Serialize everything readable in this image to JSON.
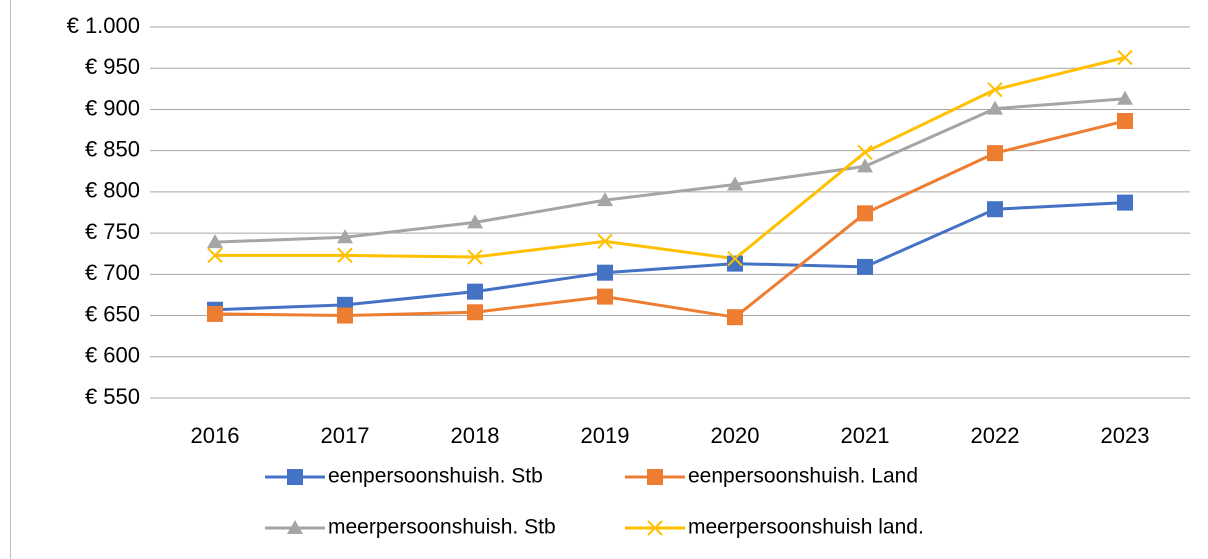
{
  "chart_data": {
    "type": "line",
    "categories": [
      "2016",
      "2017",
      "2018",
      "2019",
      "2020",
      "2021",
      "2022",
      "2023"
    ],
    "series": [
      {
        "name": "eenpersoonshuish. Stb",
        "color": "#4472c4",
        "marker": "square",
        "values": [
          657,
          663,
          679,
          702,
          713,
          709,
          779,
          787
        ]
      },
      {
        "name": "eenpersoonshuish. Land",
        "color": "#ed7d31",
        "marker": "square",
        "values": [
          652,
          650,
          654,
          673,
          648,
          774,
          847,
          886
        ]
      },
      {
        "name": "meerpersoonshuish. Stb",
        "color": "#a5a5a5",
        "marker": "triangle",
        "values": [
          739,
          745,
          763,
          790,
          809,
          831,
          901,
          913
        ]
      },
      {
        "name": "meerpersoonshuish land.",
        "color": "#ffc000",
        "marker": "x",
        "values": [
          723,
          723,
          721,
          740,
          719,
          848,
          924,
          963
        ]
      }
    ],
    "ylim": [
      550,
      1000
    ],
    "yticks": [
      {
        "value": 550,
        "label": "€ 550"
      },
      {
        "value": 600,
        "label": "€ 600"
      },
      {
        "value": 650,
        "label": "€ 650"
      },
      {
        "value": 700,
        "label": "€ 700"
      },
      {
        "value": 750,
        "label": "€ 750"
      },
      {
        "value": 800,
        "label": "€ 800"
      },
      {
        "value": 850,
        "label": "€ 850"
      },
      {
        "value": 900,
        "label": "€ 900"
      },
      {
        "value": 950,
        "label": "€ 950"
      },
      {
        "value": 1000,
        "label": "€ 1.000"
      }
    ],
    "grid": true,
    "legend": "bottom"
  }
}
